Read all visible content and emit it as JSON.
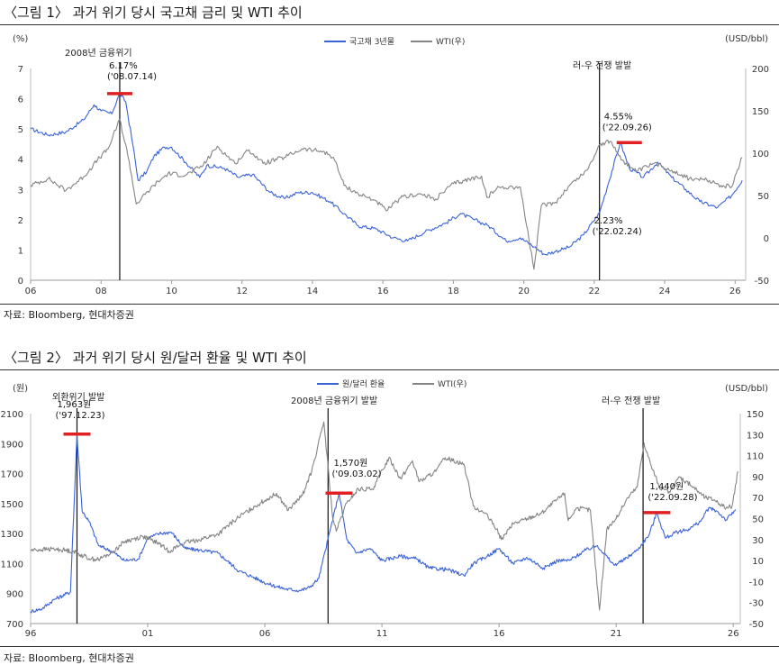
{
  "figures": [
    {
      "title": "〈그림 1〉 과거 위기 당시 국고채 금리 및 WTI 추이",
      "source": "자료: Bloomberg, 현대차증권"
    },
    {
      "title": "〈그림 2〉 과거 위기 당시 원/달러 환율 및 WTI 추이",
      "source": "자료: Bloomberg, 현대차증권"
    }
  ],
  "colors": {
    "primary_series": "#3a63d8",
    "wti_series": "#848484",
    "marker": "#e02020",
    "event_line": "#111111"
  },
  "chart_data": [
    {
      "type": "line",
      "left_unit": "(%)",
      "right_unit": "(USD/bbl)",
      "x_range": [
        2006,
        2026.3
      ],
      "x_ticks": [
        {
          "x": 2006,
          "label": "06"
        },
        {
          "x": 2008,
          "label": "08"
        },
        {
          "x": 2010,
          "label": "10"
        },
        {
          "x": 2012,
          "label": "12"
        },
        {
          "x": 2014,
          "label": "14"
        },
        {
          "x": 2016,
          "label": "16"
        },
        {
          "x": 2018,
          "label": "18"
        },
        {
          "x": 2020,
          "label": "20"
        },
        {
          "x": 2022,
          "label": "22"
        },
        {
          "x": 2024,
          "label": "24"
        },
        {
          "x": 2026,
          "label": "26"
        }
      ],
      "y_left_range": [
        0,
        7
      ],
      "y_left_ticks": [
        0,
        1,
        2,
        3,
        4,
        5,
        6,
        7
      ],
      "y_right_range": [
        -50,
        200
      ],
      "y_right_ticks": [
        -50,
        0,
        50,
        100,
        150,
        200
      ],
      "legend_position": "top-center",
      "series": [
        {
          "name": "국고채 3년물",
          "axis": "left",
          "points": [
            [
              2006.0,
              5.0
            ],
            [
              2006.5,
              4.8
            ],
            [
              2007.0,
              4.9
            ],
            [
              2007.5,
              5.3
            ],
            [
              2007.8,
              5.8
            ],
            [
              2008.0,
              5.6
            ],
            [
              2008.3,
              5.5
            ],
            [
              2008.53,
              6.17
            ],
            [
              2008.7,
              5.9
            ],
            [
              2008.9,
              4.5
            ],
            [
              2009.05,
              3.3
            ],
            [
              2009.3,
              3.6
            ],
            [
              2009.5,
              4.1
            ],
            [
              2009.8,
              4.4
            ],
            [
              2010.0,
              4.4
            ],
            [
              2010.4,
              3.9
            ],
            [
              2010.8,
              3.4
            ],
            [
              2011.0,
              3.8
            ],
            [
              2011.5,
              3.7
            ],
            [
              2011.9,
              3.4
            ],
            [
              2012.3,
              3.5
            ],
            [
              2012.8,
              2.9
            ],
            [
              2013.2,
              2.7
            ],
            [
              2013.6,
              2.9
            ],
            [
              2014.0,
              2.9
            ],
            [
              2014.5,
              2.6
            ],
            [
              2014.9,
              2.2
            ],
            [
              2015.3,
              1.8
            ],
            [
              2015.8,
              1.7
            ],
            [
              2016.3,
              1.4
            ],
            [
              2016.7,
              1.3
            ],
            [
              2017.2,
              1.6
            ],
            [
              2017.8,
              1.9
            ],
            [
              2018.2,
              2.2
            ],
            [
              2018.6,
              2.0
            ],
            [
              2019.0,
              1.8
            ],
            [
              2019.5,
              1.3
            ],
            [
              2019.9,
              1.4
            ],
            [
              2020.3,
              1.1
            ],
            [
              2020.6,
              0.85
            ],
            [
              2020.9,
              0.95
            ],
            [
              2021.3,
              1.1
            ],
            [
              2021.7,
              1.5
            ],
            [
              2022.15,
              2.23
            ],
            [
              2022.4,
              3.2
            ],
            [
              2022.74,
              4.55
            ],
            [
              2023.0,
              3.7
            ],
            [
              2023.4,
              3.4
            ],
            [
              2023.8,
              3.9
            ],
            [
              2024.2,
              3.4
            ],
            [
              2024.6,
              3.0
            ],
            [
              2025.0,
              2.6
            ],
            [
              2025.5,
              2.4
            ],
            [
              2025.9,
              2.8
            ],
            [
              2026.2,
              3.3
            ]
          ]
        },
        {
          "name": "WTI(우)",
          "axis": "right",
          "points": [
            [
              2006.0,
              62
            ],
            [
              2006.5,
              70
            ],
            [
              2007.0,
              56
            ],
            [
              2007.5,
              72
            ],
            [
              2007.9,
              92
            ],
            [
              2008.2,
              105
            ],
            [
              2008.53,
              140
            ],
            [
              2008.8,
              90
            ],
            [
              2009.0,
              40
            ],
            [
              2009.5,
              62
            ],
            [
              2009.9,
              76
            ],
            [
              2010.4,
              74
            ],
            [
              2010.9,
              86
            ],
            [
              2011.3,
              108
            ],
            [
              2011.8,
              88
            ],
            [
              2012.2,
              104
            ],
            [
              2012.6,
              88
            ],
            [
              2013.2,
              95
            ],
            [
              2013.7,
              105
            ],
            [
              2014.3,
              102
            ],
            [
              2014.6,
              95
            ],
            [
              2014.9,
              62
            ],
            [
              2015.3,
              52
            ],
            [
              2015.8,
              44
            ],
            [
              2016.1,
              32
            ],
            [
              2016.5,
              47
            ],
            [
              2017.0,
              52
            ],
            [
              2017.5,
              46
            ],
            [
              2018.0,
              64
            ],
            [
              2018.8,
              73
            ],
            [
              2018.95,
              48
            ],
            [
              2019.3,
              60
            ],
            [
              2019.9,
              60
            ],
            [
              2020.29,
              -37
            ],
            [
              2020.5,
              38
            ],
            [
              2020.9,
              42
            ],
            [
              2021.3,
              62
            ],
            [
              2021.8,
              80
            ],
            [
              2022.15,
              110
            ],
            [
              2022.45,
              114
            ],
            [
              2022.8,
              92
            ],
            [
              2023.2,
              78
            ],
            [
              2023.7,
              88
            ],
            [
              2024.2,
              80
            ],
            [
              2024.7,
              70
            ],
            [
              2025.2,
              68
            ],
            [
              2025.6,
              62
            ],
            [
              2025.9,
              60
            ],
            [
              2026.2,
              95
            ]
          ]
        }
      ],
      "event_lines": [
        {
          "x": 2008.53,
          "label": "2008년 금융위기"
        },
        {
          "x": 2022.15,
          "label": "러-우 전쟁 발발"
        }
      ],
      "annotations": [
        {
          "x": 2008.53,
          "y": 6.17,
          "value": "6.17%",
          "date": "('08.07.14)"
        },
        {
          "x": 2022.74,
          "y": 4.55,
          "value": "4.55%",
          "date": "('22.09.26)"
        },
        {
          "x": 2022.15,
          "y": 2.23,
          "value": "2.23%",
          "date": "('22.02.24)"
        }
      ]
    },
    {
      "type": "line",
      "left_unit": "(원)",
      "right_unit": "(USD/bbl)",
      "x_range": [
        1996,
        2026.3
      ],
      "x_ticks": [
        {
          "x": 1996,
          "label": "96"
        },
        {
          "x": 2001,
          "label": "01"
        },
        {
          "x": 2006,
          "label": "06"
        },
        {
          "x": 2011,
          "label": "11"
        },
        {
          "x": 2016,
          "label": "16"
        },
        {
          "x": 2021,
          "label": "21"
        },
        {
          "x": 2026,
          "label": "26"
        }
      ],
      "y_left_range": [
        700,
        2100
      ],
      "y_left_ticks": [
        700,
        900,
        1100,
        1300,
        1500,
        1700,
        1900,
        2100
      ],
      "y_right_range": [
        -50,
        150
      ],
      "y_right_ticks": [
        -50,
        -30,
        -10,
        10,
        30,
        50,
        70,
        90,
        110,
        130,
        150
      ],
      "legend_position": "top-center",
      "series": [
        {
          "name": "원/달러 환율",
          "axis": "left",
          "points": [
            [
              1996.0,
              780
            ],
            [
              1996.5,
              800
            ],
            [
              1997.0,
              860
            ],
            [
              1997.7,
              910
            ],
            [
              1997.98,
              1963
            ],
            [
              1998.2,
              1450
            ],
            [
              1998.5,
              1380
            ],
            [
              1998.9,
              1220
            ],
            [
              1999.5,
              1180
            ],
            [
              2000.0,
              1120
            ],
            [
              2000.6,
              1130
            ],
            [
              2001.0,
              1270
            ],
            [
              2001.5,
              1300
            ],
            [
              2002.0,
              1310
            ],
            [
              2002.6,
              1200
            ],
            [
              2003.2,
              1190
            ],
            [
              2004.0,
              1170
            ],
            [
              2004.9,
              1050
            ],
            [
              2005.5,
              1010
            ],
            [
              2006.2,
              960
            ],
            [
              2006.9,
              930
            ],
            [
              2007.5,
              920
            ],
            [
              2007.9,
              940
            ],
            [
              2008.3,
              1000
            ],
            [
              2008.8,
              1330
            ],
            [
              2009.17,
              1570
            ],
            [
              2009.5,
              1260
            ],
            [
              2009.9,
              1170
            ],
            [
              2010.5,
              1200
            ],
            [
              2011.0,
              1120
            ],
            [
              2011.8,
              1150
            ],
            [
              2012.5,
              1130
            ],
            [
              2013.0,
              1070
            ],
            [
              2013.8,
              1060
            ],
            [
              2014.5,
              1020
            ],
            [
              2014.9,
              1100
            ],
            [
              2015.5,
              1150
            ],
            [
              2016.0,
              1200
            ],
            [
              2016.6,
              1100
            ],
            [
              2017.2,
              1140
            ],
            [
              2017.9,
              1070
            ],
            [
              2018.5,
              1120
            ],
            [
              2019.0,
              1120
            ],
            [
              2019.7,
              1190
            ],
            [
              2020.2,
              1220
            ],
            [
              2020.9,
              1090
            ],
            [
              2021.3,
              1120
            ],
            [
              2021.9,
              1190
            ],
            [
              2022.4,
              1290
            ],
            [
              2022.74,
              1440
            ],
            [
              2023.1,
              1270
            ],
            [
              2023.6,
              1310
            ],
            [
              2024.1,
              1330
            ],
            [
              2024.6,
              1380
            ],
            [
              2024.95,
              1470
            ],
            [
              2025.3,
              1450
            ],
            [
              2025.7,
              1390
            ],
            [
              2026.1,
              1460
            ]
          ]
        },
        {
          "name": "WTI(우)",
          "axis": "right",
          "points": [
            [
              1996.0,
              20
            ],
            [
              1997.0,
              21
            ],
            [
              1997.8,
              19
            ],
            [
              1998.5,
              12
            ],
            [
              1998.9,
              11
            ],
            [
              1999.5,
              18
            ],
            [
              2000.0,
              28
            ],
            [
              2000.8,
              33
            ],
            [
              2001.5,
              26
            ],
            [
              2001.9,
              19
            ],
            [
              2002.6,
              27
            ],
            [
              2003.2,
              30
            ],
            [
              2004.0,
              35
            ],
            [
              2004.8,
              50
            ],
            [
              2005.6,
              62
            ],
            [
              2006.5,
              74
            ],
            [
              2007.0,
              58
            ],
            [
              2007.6,
              72
            ],
            [
              2008.0,
              95
            ],
            [
              2008.52,
              142
            ],
            [
              2008.9,
              50
            ],
            [
              2009.05,
              38
            ],
            [
              2009.5,
              65
            ],
            [
              2010.0,
              78
            ],
            [
              2010.6,
              78
            ],
            [
              2011.3,
              108
            ],
            [
              2011.8,
              88
            ],
            [
              2012.3,
              105
            ],
            [
              2012.6,
              85
            ],
            [
              2013.3,
              95
            ],
            [
              2013.7,
              108
            ],
            [
              2014.5,
              102
            ],
            [
              2014.9,
              62
            ],
            [
              2015.4,
              55
            ],
            [
              2015.9,
              40
            ],
            [
              2016.1,
              30
            ],
            [
              2016.6,
              45
            ],
            [
              2017.2,
              50
            ],
            [
              2017.8,
              55
            ],
            [
              2018.8,
              74
            ],
            [
              2018.95,
              48
            ],
            [
              2019.3,
              60
            ],
            [
              2019.9,
              58
            ],
            [
              2020.29,
              -37
            ],
            [
              2020.6,
              40
            ],
            [
              2021.0,
              50
            ],
            [
              2021.5,
              70
            ],
            [
              2021.9,
              80
            ],
            [
              2022.19,
              122
            ],
            [
              2022.5,
              100
            ],
            [
              2022.9,
              78
            ],
            [
              2023.3,
              75
            ],
            [
              2023.7,
              90
            ],
            [
              2024.3,
              80
            ],
            [
              2024.8,
              70
            ],
            [
              2025.2,
              68
            ],
            [
              2025.7,
              60
            ],
            [
              2025.95,
              62
            ],
            [
              2026.2,
              95
            ]
          ]
        }
      ],
      "event_lines": [
        {
          "x": 1997.98,
          "label": "외환위기 발발"
        },
        {
          "x": 2008.7,
          "label": "2008년 금융위기 발발"
        },
        {
          "x": 2022.15,
          "label": "러-우 전쟁 발발"
        }
      ],
      "annotations": [
        {
          "x": 1997.98,
          "y": 1963,
          "value": "1,963원",
          "date": "('97.12.23)"
        },
        {
          "x": 2009.17,
          "y": 1570,
          "value": "1,570원",
          "date": "('09.03.02)"
        },
        {
          "x": 2022.74,
          "y": 1440,
          "value": "1,440원",
          "date": "('22.09.28)"
        }
      ]
    }
  ]
}
